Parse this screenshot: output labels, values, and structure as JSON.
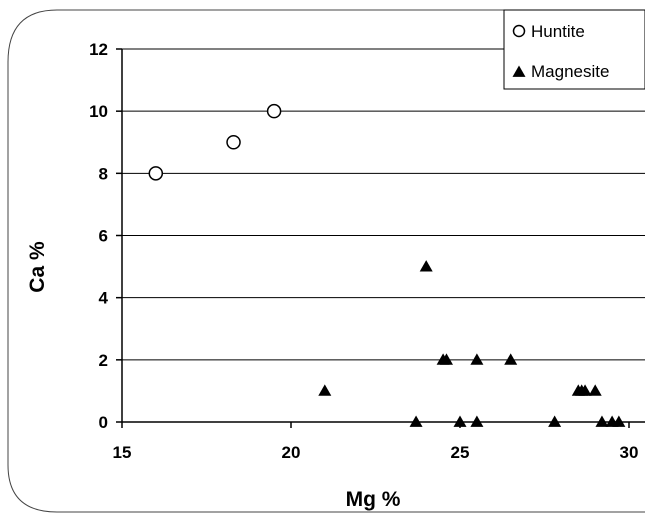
{
  "chart_data": {
    "type": "scatter",
    "title": "",
    "xlabel": "Mg %",
    "ylabel": "Ca %",
    "xlim": [
      15,
      30
    ],
    "ylim": [
      0,
      12
    ],
    "xticks": [
      15,
      20,
      25,
      30
    ],
    "yticks": [
      0,
      2,
      4,
      6,
      8,
      10,
      12
    ],
    "grid": "horizontal",
    "legend": "top-right",
    "series": [
      {
        "name": "Huntite",
        "marker": "open-circle",
        "color": "#000000",
        "points": [
          [
            16.0,
            8
          ],
          [
            18.3,
            9
          ],
          [
            19.5,
            10
          ]
        ]
      },
      {
        "name": "Magnesite",
        "marker": "filled-triangle",
        "color": "#000000",
        "points": [
          [
            21.0,
            1
          ],
          [
            23.7,
            0
          ],
          [
            24.0,
            5
          ],
          [
            24.5,
            2
          ],
          [
            24.6,
            2
          ],
          [
            25.0,
            0
          ],
          [
            25.5,
            0
          ],
          [
            25.5,
            2
          ],
          [
            26.5,
            2
          ],
          [
            27.8,
            0
          ],
          [
            28.5,
            1
          ],
          [
            28.6,
            1
          ],
          [
            28.7,
            1
          ],
          [
            29.0,
            1
          ],
          [
            29.2,
            0
          ],
          [
            29.5,
            0
          ],
          [
            29.7,
            0
          ]
        ]
      }
    ]
  }
}
